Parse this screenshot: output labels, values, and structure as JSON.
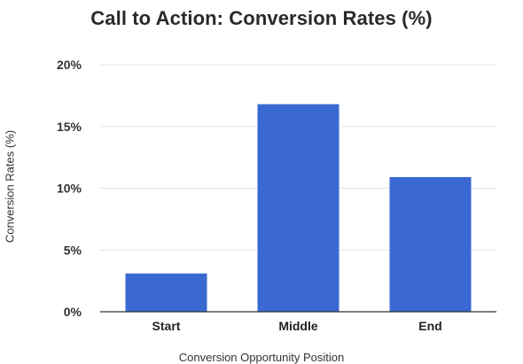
{
  "chart_data": {
    "type": "bar",
    "title": "Call to Action: Conversion Rates (%)",
    "xlabel": "Conversion Opportunity Position",
    "ylabel": "Conversion Rates (%)",
    "categories": [
      "Start",
      "Middle",
      "End"
    ],
    "values": [
      3.1,
      16.8,
      10.9
    ],
    "ylim": [
      0,
      20
    ],
    "yticks": [
      0,
      5,
      10,
      15,
      20
    ],
    "ytick_labels": [
      "0%",
      "5%",
      "10%",
      "15%",
      "20%"
    ],
    "grid": true,
    "legend": "none",
    "bar_color": "#3a69d1",
    "grid_color": "#e3e3e3",
    "axis_color": "#333333"
  }
}
